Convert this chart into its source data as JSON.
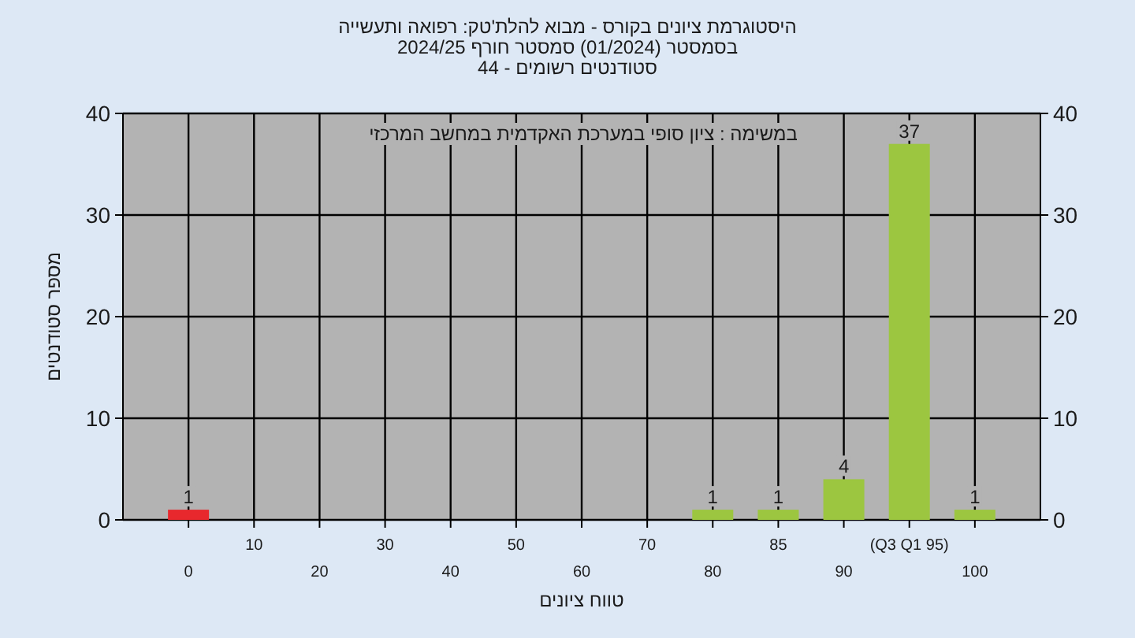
{
  "chart_data": {
    "type": "bar",
    "title": "היסטוגרמת ציונים בקורס - מבוא להלת'טק: רפואה ותעשייה",
    "subtitle": "בסמסטר (01/2024) סמסטר חורף 2024/25",
    "annotations": [
      "סטודנטים רשומים - 44",
      "במשימה : ציון סופי במערכת האקדמית במחשב המרכזי"
    ],
    "xlabel": "טווח ציונים",
    "ylabel": "מספר סטודנטים",
    "categories": [
      "0",
      "10",
      "20",
      "30",
      "40",
      "50",
      "60",
      "70",
      "80",
      "85",
      "90",
      "(Q3 Q1 95)",
      "100"
    ],
    "values": [
      1,
      0,
      0,
      0,
      0,
      0,
      0,
      0,
      1,
      1,
      4,
      37,
      1
    ],
    "colors": [
      "#e8282d",
      "#9cc640",
      "#9cc640",
      "#9cc640",
      "#9cc640",
      "#9cc640",
      "#9cc640",
      "#9cc640",
      "#9cc640",
      "#9cc640",
      "#9cc640",
      "#9cc640",
      "#9cc640"
    ],
    "value_labels": [
      "1",
      null,
      null,
      null,
      null,
      null,
      null,
      null,
      "1",
      "1",
      "4",
      "37",
      "1"
    ],
    "ylim": [
      0,
      40
    ],
    "yticks": [
      0,
      10,
      20,
      30,
      40
    ],
    "y2lim": [
      0,
      40
    ],
    "y2ticks": [
      0,
      10,
      20,
      30,
      40
    ],
    "grid": true
  }
}
